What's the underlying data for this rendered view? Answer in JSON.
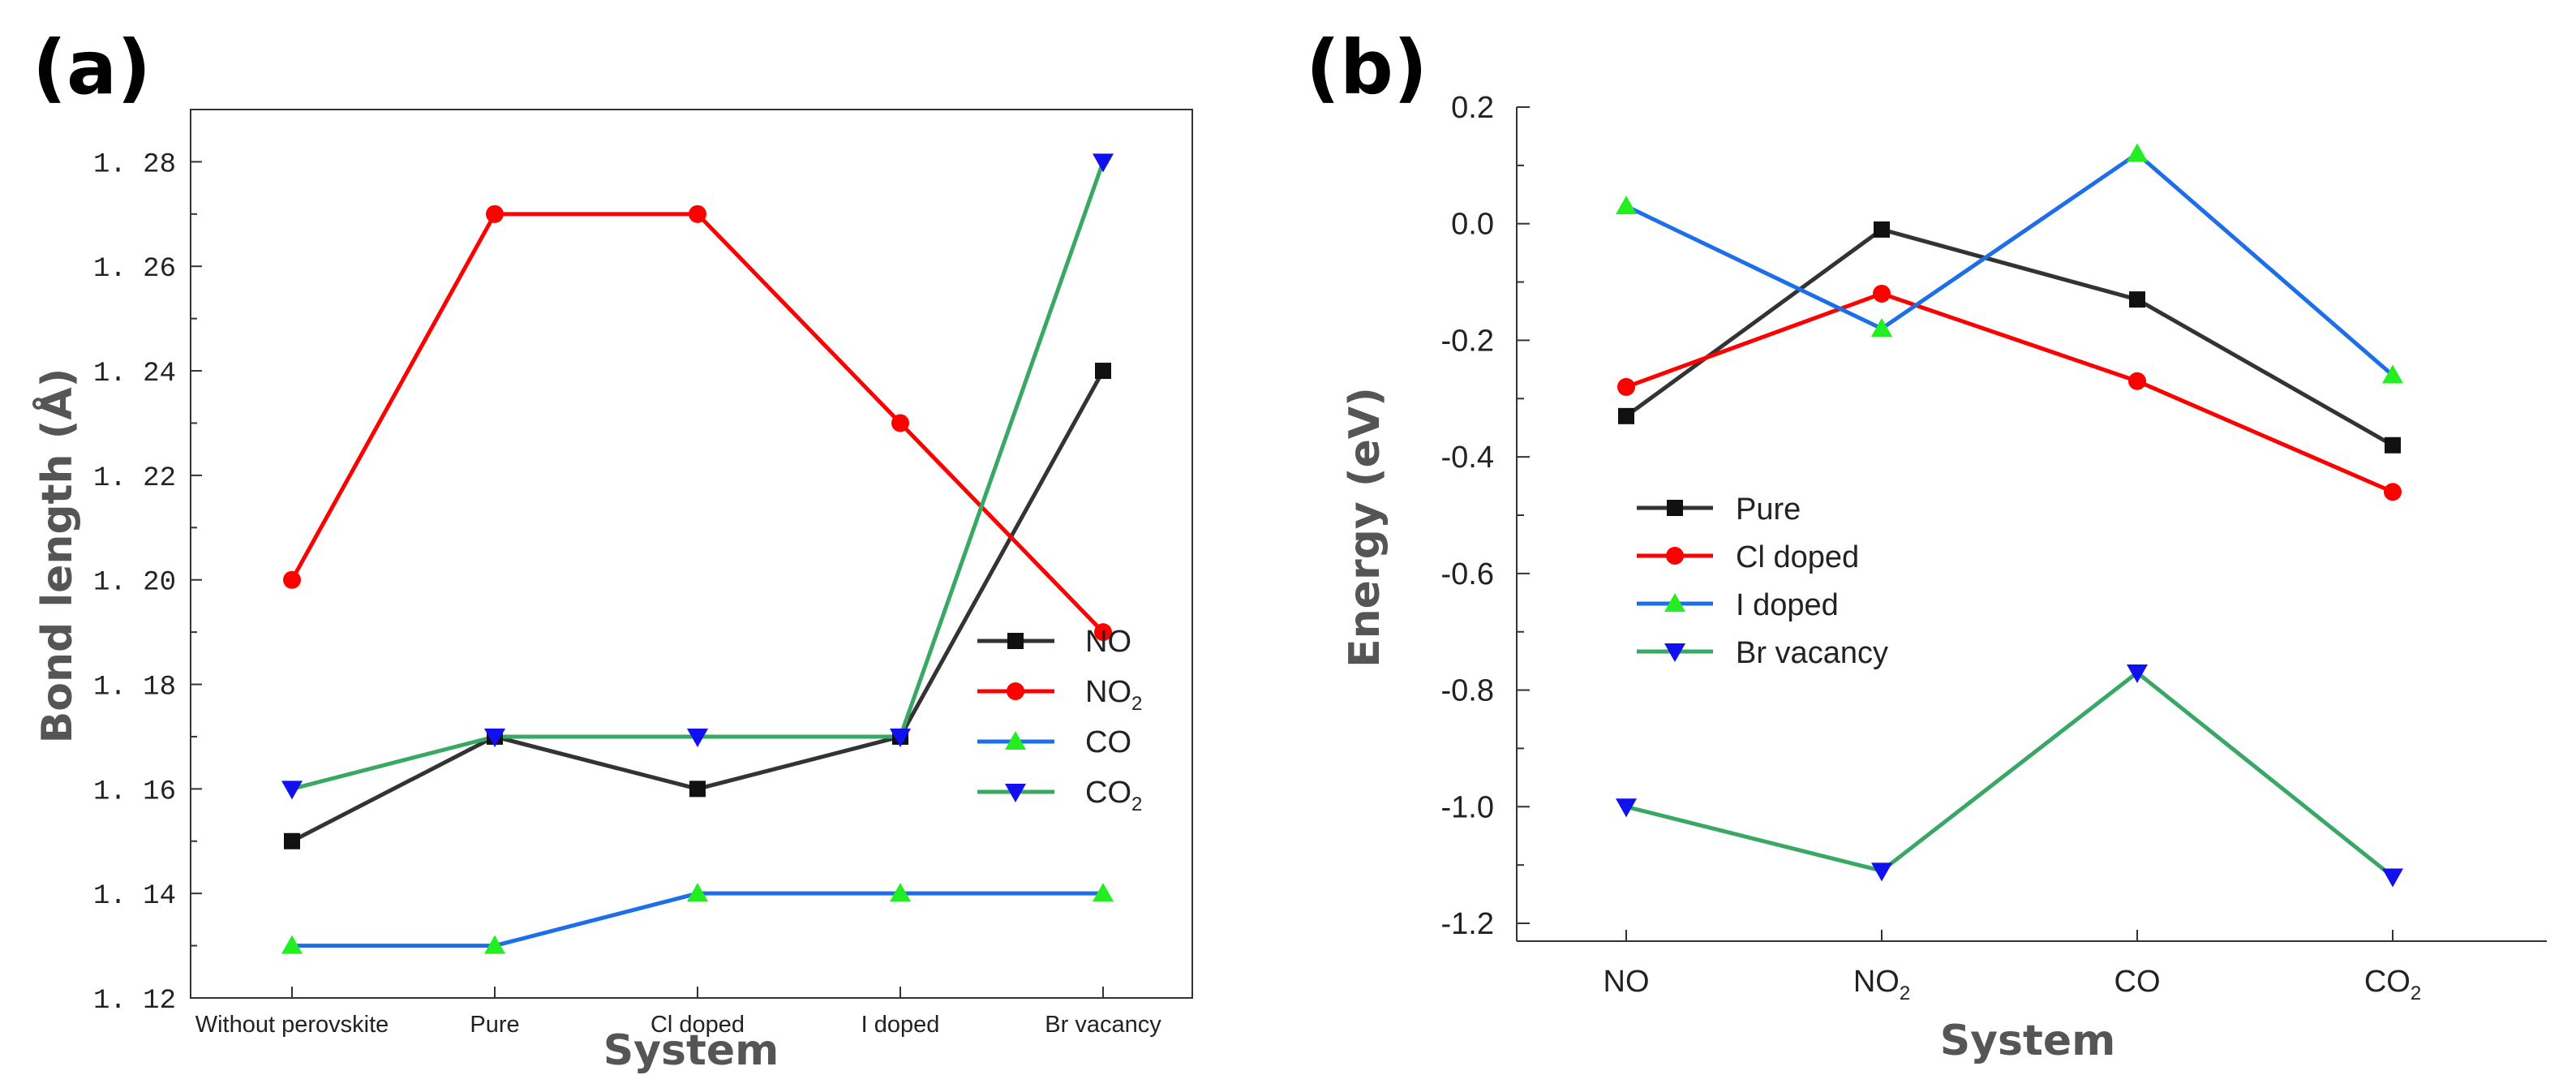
{
  "panel_labels": {
    "a": "(a)",
    "b": "(b)"
  },
  "colors": {
    "black_line": "#333333",
    "black_marker": "#111111",
    "red": "#ff0000",
    "blue_line": "#1c6fe8",
    "green_marker": "#22ee22",
    "green_line": "#3aa865",
    "blue_marker": "#1111ee"
  },
  "chart_data": [
    {
      "type": "line",
      "title": "",
      "xlabel": "System",
      "ylabel": "Bond length (Å)",
      "categories": [
        "Without perovskite",
        "Pure",
        "Cl doped",
        "I doped",
        "Br vacancy"
      ],
      "ylim": [
        1.12,
        1.29
      ],
      "yticks": [
        1.12,
        1.14,
        1.16,
        1.18,
        1.2,
        1.22,
        1.24,
        1.26,
        1.28
      ],
      "ytick_labels": [
        "1. 12",
        "1. 14",
        "1. 16",
        "1. 18",
        "1. 20",
        "1. 22",
        "1. 24",
        "1. 26",
        "1. 28"
      ],
      "legend_position": "right-middle",
      "series": [
        {
          "name": "NO",
          "name_main": "NO",
          "name_sub": "",
          "marker": "square",
          "values": [
            1.15,
            1.17,
            1.16,
            1.17,
            1.24
          ]
        },
        {
          "name": "NO2",
          "name_main": "NO",
          "name_sub": "2",
          "marker": "circle",
          "values": [
            1.2,
            1.27,
            1.27,
            1.23,
            1.19
          ]
        },
        {
          "name": "CO",
          "name_main": "CO",
          "name_sub": "",
          "marker": "triangle-up",
          "values": [
            1.13,
            1.13,
            1.14,
            1.14,
            1.14
          ]
        },
        {
          "name": "CO2",
          "name_main": "CO",
          "name_sub": "2",
          "marker": "triangle-down",
          "values": [
            1.16,
            1.17,
            1.17,
            1.17,
            1.28
          ]
        }
      ]
    },
    {
      "type": "line",
      "title": "",
      "xlabel": "System",
      "ylabel": "Energy (eV)",
      "categories": [
        "NO",
        "NO2",
        "CO",
        "CO2"
      ],
      "category_main": [
        "NO",
        "NO",
        "CO",
        "CO"
      ],
      "category_sub": [
        "",
        "2",
        "",
        "2"
      ],
      "ylim": [
        -1.2,
        0.2
      ],
      "yticks": [
        -1.2,
        -1.0,
        -0.8,
        -0.6,
        -0.4,
        -0.2,
        0.0,
        0.2
      ],
      "ytick_labels": [
        "-1.2",
        "-1.0",
        "-0.8",
        "-0.6",
        "-0.4",
        "-0.2",
        "0.0",
        "0.2"
      ],
      "legend_position": "left-middle",
      "series": [
        {
          "name": "Pure",
          "marker": "square",
          "values": [
            -0.33,
            -0.01,
            -0.13,
            -0.38
          ]
        },
        {
          "name": "Cl doped",
          "marker": "circle",
          "values": [
            -0.28,
            -0.12,
            -0.27,
            -0.46
          ]
        },
        {
          "name": "I doped",
          "marker": "triangle-up",
          "values": [
            0.03,
            -0.18,
            0.12,
            -0.26
          ]
        },
        {
          "name": "Br vacancy",
          "marker": "triangle-down",
          "values": [
            -1.0,
            -1.11,
            -0.77,
            -1.12
          ]
        }
      ]
    }
  ]
}
